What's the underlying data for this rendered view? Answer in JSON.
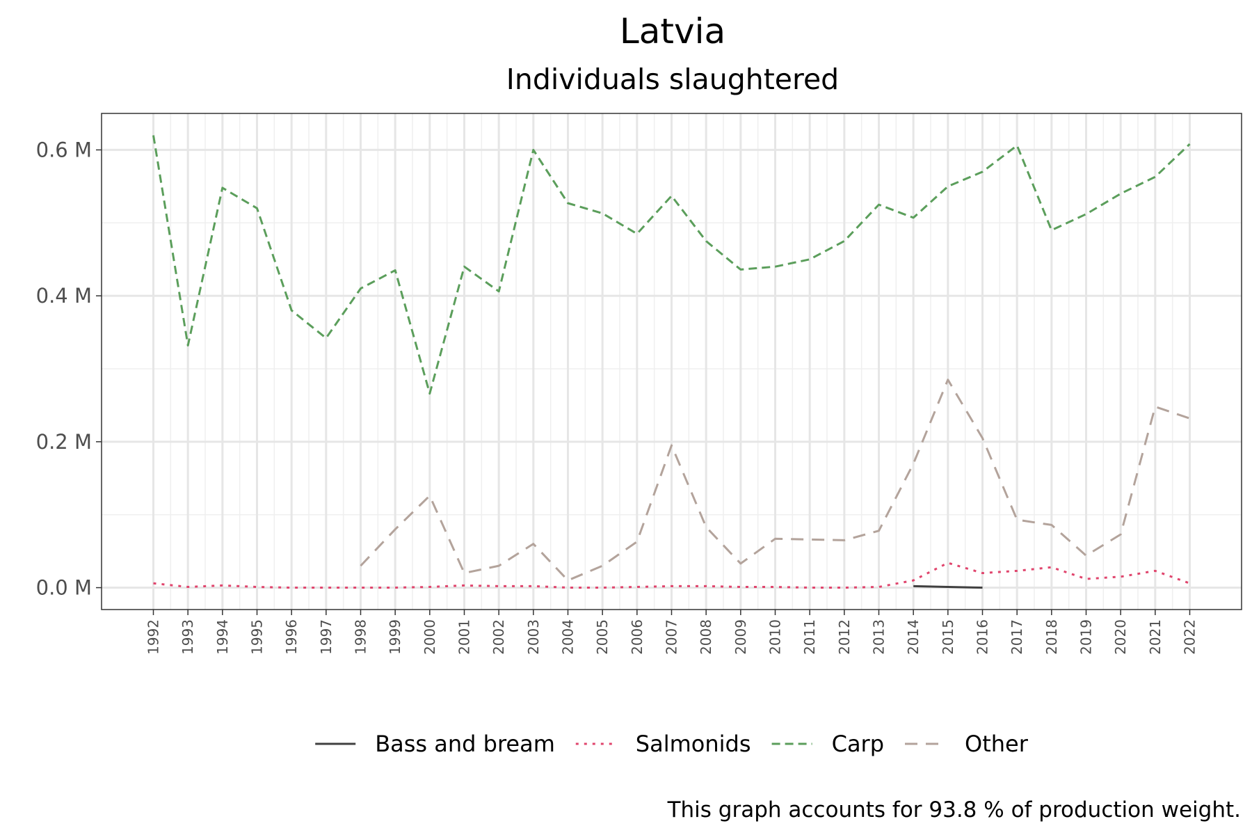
{
  "chart_data": {
    "type": "line",
    "title": "Latvia",
    "subtitle": "Individuals slaughtered",
    "caption": "This graph accounts for 93.8 % of production weight.",
    "xlabel": "",
    "ylabel": "",
    "x": [
      1992,
      1993,
      1994,
      1995,
      1996,
      1997,
      1998,
      1999,
      2000,
      2001,
      2002,
      2003,
      2004,
      2005,
      2006,
      2007,
      2008,
      2009,
      2010,
      2011,
      2012,
      2013,
      2014,
      2015,
      2016,
      2017,
      2018,
      2019,
      2020,
      2021,
      2022
    ],
    "ylim": [
      -0.03,
      0.65
    ],
    "yticks": [
      0.0,
      0.2,
      0.4,
      0.6
    ],
    "ytick_labels": [
      "0.0 M",
      "0.2 M",
      "0.4 M",
      "0.6 M"
    ],
    "grid": true,
    "legend_position": "bottom",
    "series": [
      {
        "name": "Bass and bream",
        "color": "#404040",
        "dash": "solid",
        "values": [
          null,
          null,
          null,
          null,
          null,
          null,
          null,
          null,
          null,
          null,
          null,
          null,
          null,
          null,
          null,
          null,
          null,
          null,
          null,
          null,
          null,
          null,
          0.002,
          0.001,
          0.0,
          null,
          null,
          null,
          null,
          null,
          null
        ]
      },
      {
        "name": "Salmonids",
        "color": "#e0456d",
        "dash": "dotted",
        "values": [
          0.006,
          0.001,
          0.003,
          0.001,
          0.0,
          0.0,
          0.0,
          0.0,
          0.001,
          0.003,
          0.002,
          0.002,
          0.0,
          0.0,
          0.001,
          0.002,
          0.002,
          0.001,
          0.001,
          0.0,
          0.0,
          0.001,
          0.01,
          0.034,
          0.02,
          0.023,
          0.028,
          0.012,
          0.015,
          0.023,
          0.006
        ]
      },
      {
        "name": "Carp",
        "color": "#5b9e5b",
        "dash": "dashed",
        "values": [
          0.62,
          0.332,
          0.548,
          0.52,
          0.38,
          0.342,
          0.41,
          0.435,
          0.266,
          0.44,
          0.406,
          0.6,
          0.527,
          0.513,
          0.485,
          0.537,
          0.475,
          0.436,
          0.44,
          0.45,
          0.475,
          0.525,
          0.507,
          0.55,
          0.57,
          0.606,
          0.49,
          0.512,
          0.54,
          0.563,
          0.608
        ]
      },
      {
        "name": "Other",
        "color": "#b3a39b",
        "dash": "longdash",
        "values": [
          null,
          null,
          null,
          null,
          null,
          null,
          0.03,
          0.08,
          0.126,
          0.02,
          0.03,
          0.06,
          0.01,
          0.03,
          0.063,
          0.195,
          0.083,
          0.033,
          0.067,
          0.066,
          0.065,
          0.078,
          0.17,
          0.285,
          0.205,
          0.093,
          0.086,
          0.044,
          0.073,
          0.248,
          0.232
        ]
      }
    ]
  }
}
